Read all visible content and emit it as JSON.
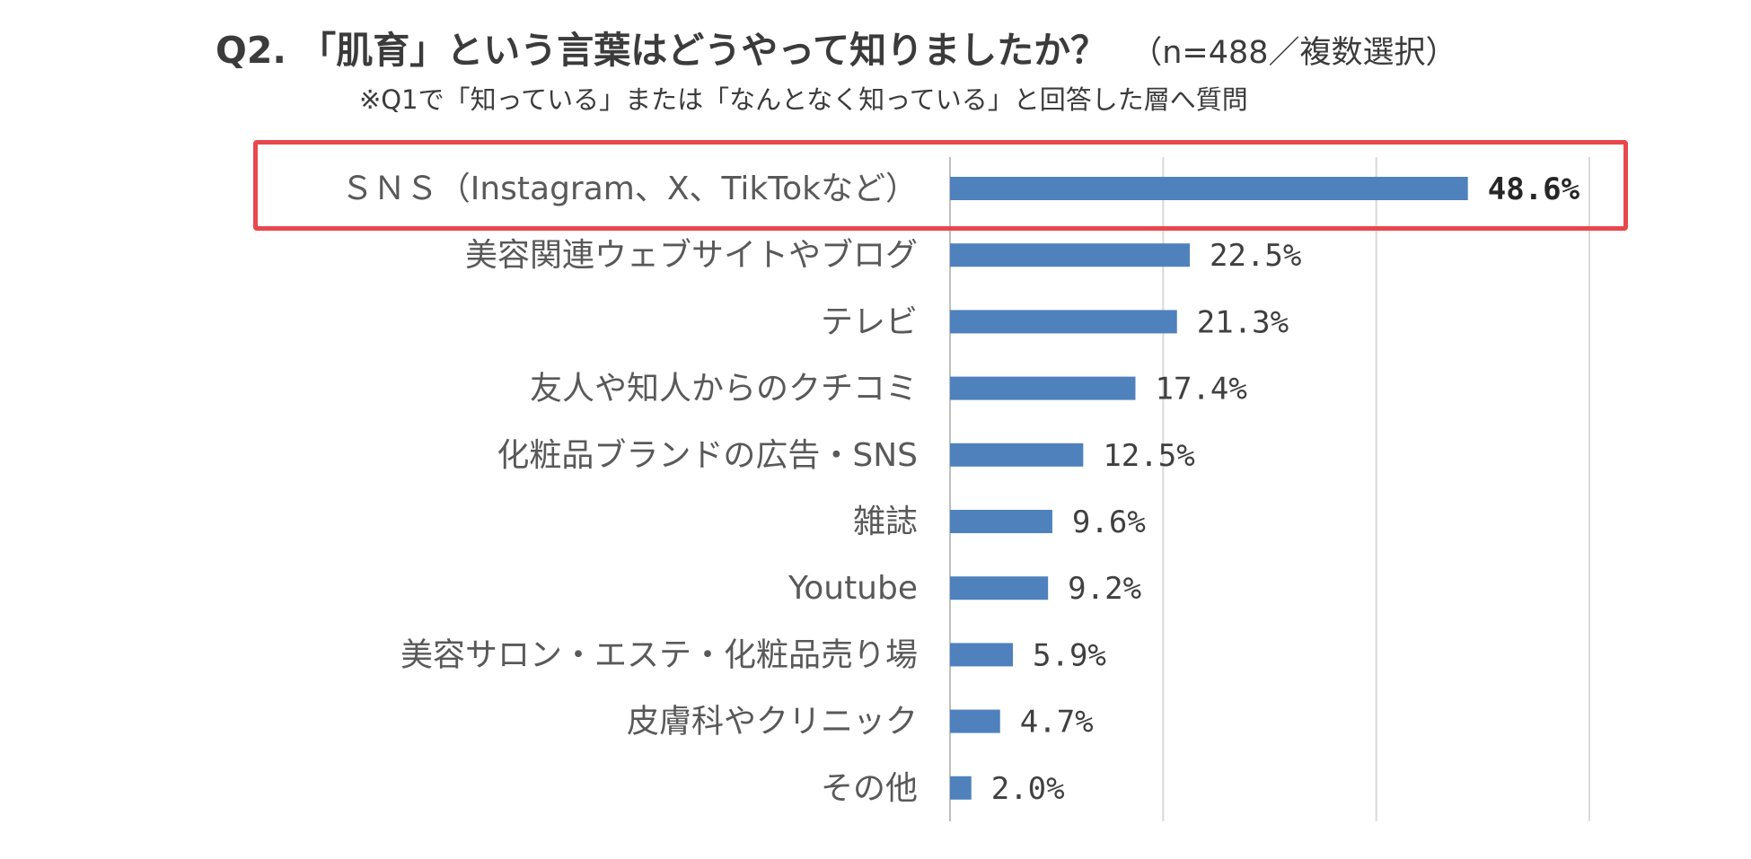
{
  "title": "Q2. 「肌育」という言葉はどうやって知りましたか？",
  "title_note": "（n=488／複数選択）",
  "subtitle": "※Q1で「知っている」または「なんとなく知っている」と回答した層へ質問",
  "chart_data": {
    "type": "bar",
    "orientation": "horizontal",
    "categories": [
      "ＳＮＳ（Instagram、X、TikTokなど）",
      "美容関連ウェブサイトやブログ",
      "テレビ",
      "友人や知人からのクチコミ",
      "化粧品ブランドの広告・SNS",
      "雑誌",
      "Youtube",
      "美容サロン・エステ・化粧品売り場",
      "皮膚科やクリニック",
      "その他"
    ],
    "values": [
      48.6,
      22.5,
      21.3,
      17.4,
      12.5,
      9.6,
      9.2,
      5.9,
      4.7,
      2.0
    ],
    "value_labels": [
      "48.6%",
      "22.5%",
      "21.3%",
      "17.4%",
      "12.5%",
      "9.6%",
      "9.2%",
      "5.9%",
      "4.7%",
      "2.0%"
    ],
    "xlim": [
      0,
      60
    ],
    "grid": true,
    "highlight_index": 0,
    "bar_color": "#4f81bd",
    "highlight_color": "#e8474c",
    "gridline_color": "#d9d9d9"
  }
}
